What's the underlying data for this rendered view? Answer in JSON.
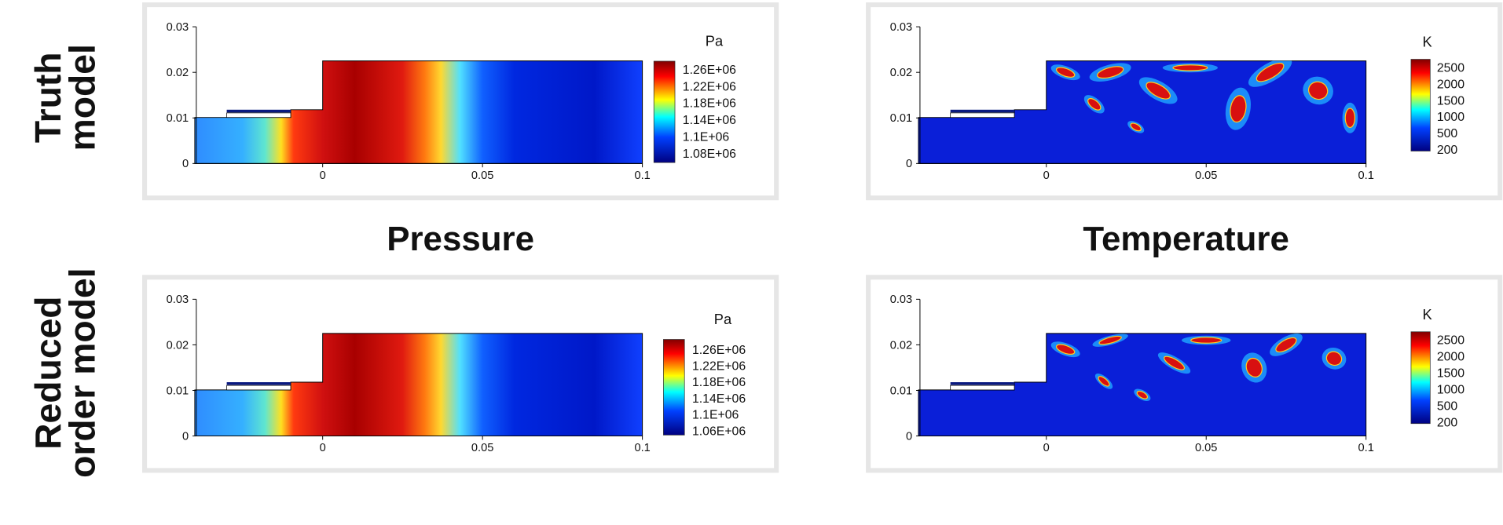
{
  "row_labels": [
    [
      "Truth",
      "model"
    ],
    [
      "Reduced",
      "order model"
    ]
  ],
  "column_titles": [
    "Pressure",
    "Temperature"
  ],
  "panels": [
    {
      "field": "pressure",
      "unit": "Pa",
      "x_ticks": [
        "0",
        "0.05",
        "0.1"
      ],
      "y_ticks": [
        "0",
        "0.01",
        "0.02",
        "0.03"
      ],
      "colorbar_ticks": [
        "1.26E+06",
        "1.22E+06",
        "1.18E+06",
        "1.14E+06",
        "1.1E+06",
        "1.08E+06"
      ]
    },
    {
      "field": "temperature",
      "unit": "K",
      "x_ticks": [
        "0",
        "0.05",
        "0.1"
      ],
      "y_ticks": [
        "0",
        "0.01",
        "0.02",
        "0.03"
      ],
      "colorbar_ticks": [
        "2500",
        "2000",
        "1500",
        "1000",
        "500",
        "200"
      ]
    },
    {
      "field": "pressure",
      "unit": "Pa",
      "x_ticks": [
        "0",
        "0.05",
        "0.1"
      ],
      "y_ticks": [
        "0",
        "0.01",
        "0.02",
        "0.03"
      ],
      "colorbar_ticks": [
        "1.26E+06",
        "1.22E+06",
        "1.18E+06",
        "1.14E+06",
        "1.1E+06",
        "1.06E+06"
      ]
    },
    {
      "field": "temperature",
      "unit": "K",
      "x_ticks": [
        "0",
        "0.05",
        "0.1"
      ],
      "y_ticks": [
        "0",
        "0.01",
        "0.02",
        "0.03"
      ],
      "colorbar_ticks": [
        "2500",
        "2000",
        "1500",
        "1000",
        "500",
        "200"
      ]
    }
  ]
}
